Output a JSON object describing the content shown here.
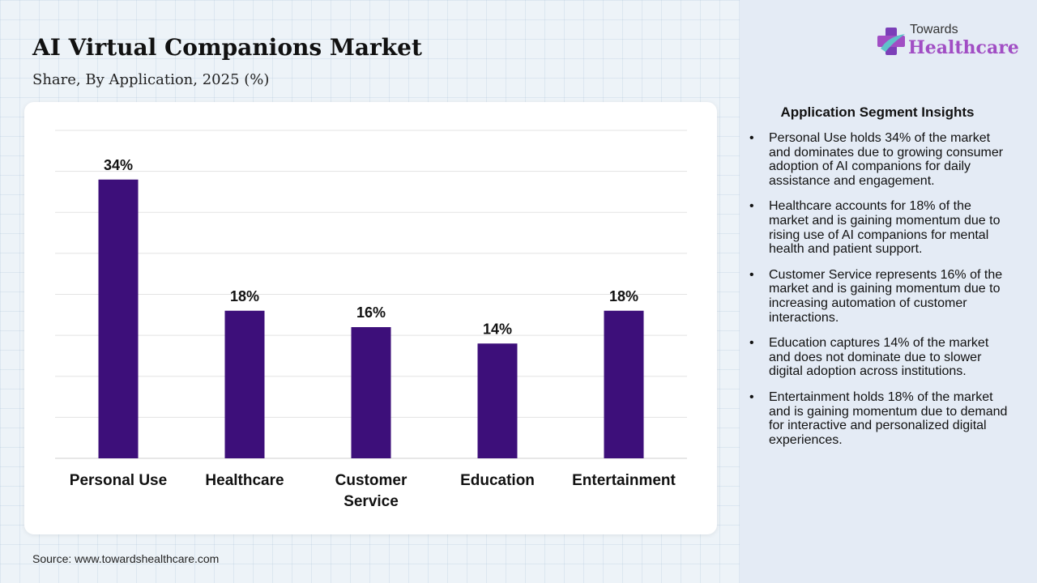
{
  "header": {
    "title": "AI Virtual Companions Market",
    "subtitle": "Share, By Application, 2025 (%)"
  },
  "chart_data": {
    "type": "bar",
    "categories": [
      "Personal Use",
      "Healthcare",
      "Customer Service",
      "Education",
      "Entertainment"
    ],
    "category_lines": [
      [
        "Personal Use"
      ],
      [
        "Healthcare"
      ],
      [
        "Customer",
        "Service"
      ],
      [
        "Education"
      ],
      [
        "Entertainment"
      ]
    ],
    "values": [
      34,
      18,
      16,
      14,
      18
    ],
    "data_labels": [
      "34%",
      "18%",
      "16%",
      "14%",
      "18%"
    ],
    "ylim": [
      0,
      40
    ],
    "grid": true,
    "bar_color": "#3d0f7a"
  },
  "source": "Source: www.towardshealthcare.com",
  "logo": {
    "line1": "Towards",
    "line2": "Healthcare",
    "icon": "plus-cross-icon"
  },
  "panel": {
    "title": "Application Segment Insights",
    "insights": [
      "Personal Use holds 34% of the market and dominates due to growing consumer adoption of AI companions for daily assistance and engagement.",
      "Healthcare accounts for 18% of the market and is gaining momentum due to rising use of AI companions for mental health and patient support.",
      "Customer Service represents 16% of the market and is gaining momentum due to increasing automation of customer interactions.",
      "Education captures 14% of the market and does not dominate due to slower digital adoption across institutions.",
      "Entertainment holds 18% of the market and is gaining momentum due to demand for interactive and personalized digital experiences."
    ]
  }
}
